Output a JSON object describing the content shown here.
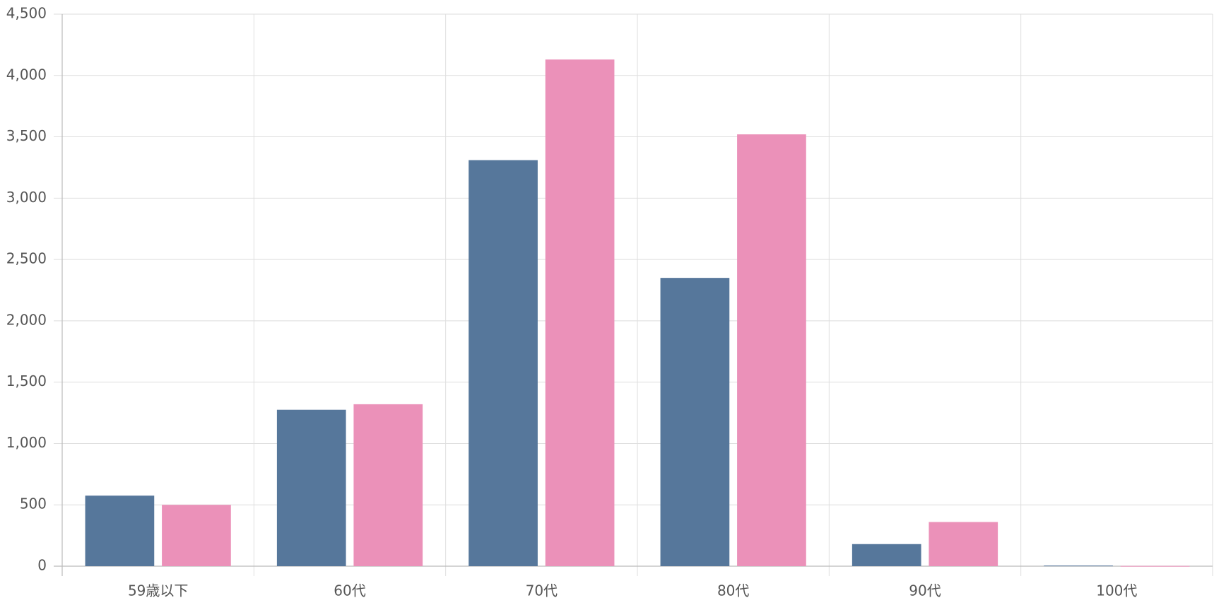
{
  "chart_data": {
    "type": "bar",
    "categories": [
      "59歳以下",
      "60代",
      "70代",
      "80代",
      "90代",
      "100代"
    ],
    "series": [
      {
        "color": "#56779b",
        "values": [
          575,
          1275,
          3310,
          2350,
          180,
          5
        ]
      },
      {
        "color": "#eb91b9",
        "values": [
          500,
          1320,
          4130,
          3520,
          360,
          2
        ]
      }
    ],
    "ylim": [
      0,
      4500
    ],
    "yticks": [
      0,
      500,
      {
        "value": 1000,
        "label": "1,000"
      },
      {
        "value": 1500,
        "label": "1,500"
      },
      {
        "value": 2000,
        "label": "2,000"
      },
      {
        "value": 2500,
        "label": "2,500"
      },
      {
        "value": 3000,
        "label": "3,000"
      },
      {
        "value": 3500,
        "label": "3,500"
      },
      {
        "value": 4000,
        "label": "4,000"
      },
      {
        "value": 4500,
        "label": "4,500"
      }
    ],
    "grid": true
  }
}
